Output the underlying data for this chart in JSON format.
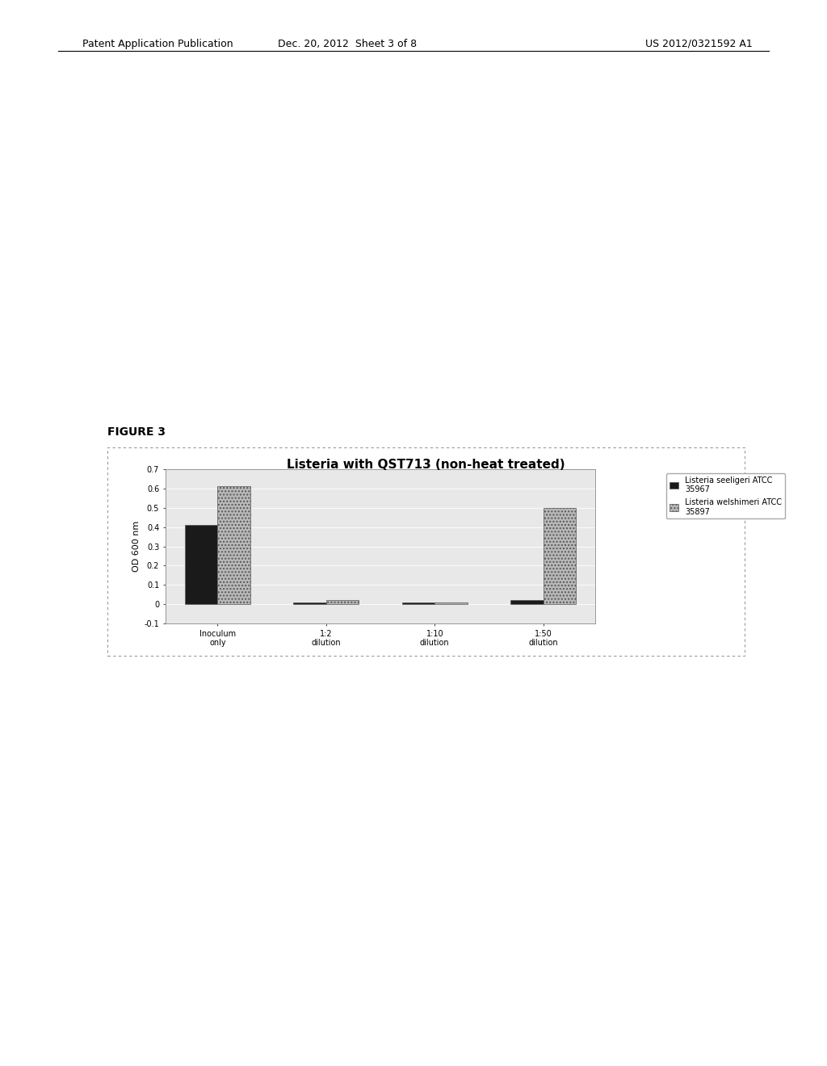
{
  "title": "Listeria with QST713 (non-heat treated)",
  "ylabel": "OD 600 nm",
  "categories": [
    "Inoculum\nonly",
    "1:2\ndilution",
    "1:10\ndilution",
    "1:50\ndilution"
  ],
  "series1_label": "Listeria seeligeri ATCC\n35967",
  "series2_label": "Listeria welshimeri ATCC\n35897",
  "series1_values": [
    0.41,
    0.01,
    0.01,
    0.02
  ],
  "series2_values": [
    0.61,
    0.02,
    0.01,
    0.5
  ],
  "series1_color": "#1a1a1a",
  "series2_color": "#b8b8b8",
  "ylim": [
    -0.1,
    0.7
  ],
  "yticks": [
    -0.1,
    0.0,
    0.1,
    0.2,
    0.3,
    0.4,
    0.5,
    0.6,
    0.7
  ],
  "background_color": "#ffffff",
  "plot_bg_color": "#e8e8e8",
  "figure_label": "FIGURE 3",
  "header_left": "Patent Application Publication",
  "header_mid": "Dec. 20, 2012  Sheet 3 of 8",
  "header_right": "US 2012/0321592 A1",
  "title_fontsize": 11,
  "axis_fontsize": 8,
  "tick_fontsize": 7,
  "legend_fontsize": 7,
  "bar_width": 0.3,
  "figure_label_fontsize": 10,
  "header_fontsize": 9
}
